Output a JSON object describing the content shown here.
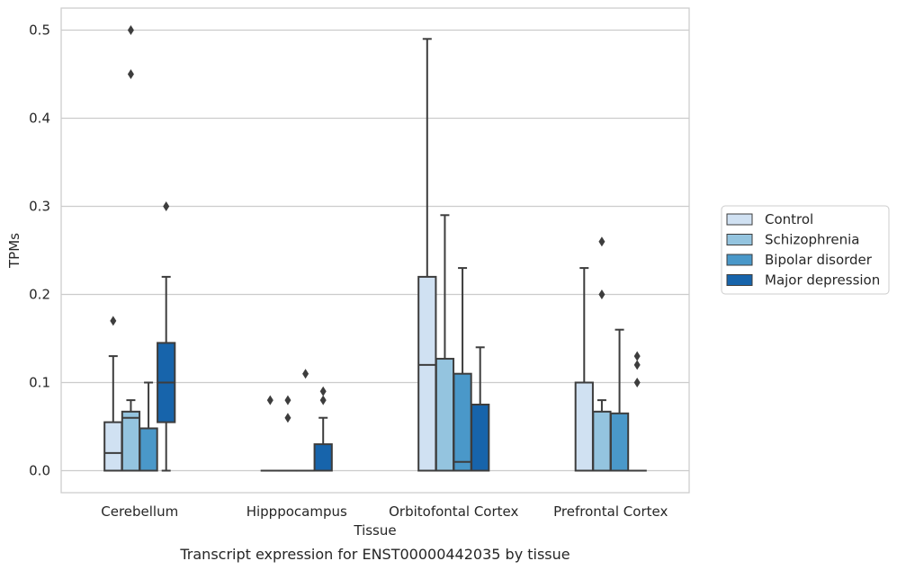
{
  "chart_data": {
    "type": "box",
    "title": "",
    "caption": "Transcript expression for ENST00000442035 by tissue",
    "xlabel": "Tissue",
    "ylabel": "TPMs",
    "ylim": [
      -0.025,
      0.525
    ],
    "yticks": [
      0.0,
      0.1,
      0.2,
      0.3,
      0.4,
      0.5
    ],
    "ytick_labels": [
      "0.0",
      "0.1",
      "0.2",
      "0.3",
      "0.4",
      "0.5"
    ],
    "grid": "horizontal",
    "legend_position": "right",
    "categories": [
      "Cerebellum",
      "Hipppocampus",
      "Orbitofontal Cortex",
      "Prefrontal Cortex"
    ],
    "series": [
      {
        "name": "Control",
        "color": "#d0e1f2",
        "boxes": [
          {
            "q1": 0.0,
            "median": 0.02,
            "q3": 0.055,
            "whisker_low": 0.0,
            "whisker_high": 0.13,
            "outliers": [
              0.17
            ]
          },
          {
            "q1": 0.0,
            "median": 0.0,
            "q3": 0.0,
            "whisker_low": 0.0,
            "whisker_high": 0.0,
            "outliers": [
              0.08
            ]
          },
          {
            "q1": 0.0,
            "median": 0.12,
            "q3": 0.22,
            "whisker_low": 0.0,
            "whisker_high": 0.49,
            "outliers": []
          },
          {
            "q1": 0.0,
            "median": 0.0,
            "q3": 0.1,
            "whisker_low": 0.0,
            "whisker_high": 0.23,
            "outliers": []
          }
        ]
      },
      {
        "name": "Schizophrenia",
        "color": "#94c4df",
        "boxes": [
          {
            "q1": 0.0,
            "median": 0.06,
            "q3": 0.067,
            "whisker_low": 0.0,
            "whisker_high": 0.08,
            "outliers": [
              0.45,
              0.5
            ]
          },
          {
            "q1": 0.0,
            "median": 0.0,
            "q3": 0.0,
            "whisker_low": 0.0,
            "whisker_high": 0.0,
            "outliers": [
              0.06,
              0.08
            ]
          },
          {
            "q1": 0.0,
            "median": 0.0,
            "q3": 0.127,
            "whisker_low": 0.0,
            "whisker_high": 0.29,
            "outliers": []
          },
          {
            "q1": 0.0,
            "median": 0.0,
            "q3": 0.067,
            "whisker_low": 0.0,
            "whisker_high": 0.08,
            "outliers": [
              0.2,
              0.26
            ]
          }
        ]
      },
      {
        "name": "Bipolar disorder",
        "color": "#4a98c9",
        "boxes": [
          {
            "q1": 0.0,
            "median": 0.0,
            "q3": 0.048,
            "whisker_low": 0.0,
            "whisker_high": 0.1,
            "outliers": []
          },
          {
            "q1": 0.0,
            "median": 0.0,
            "q3": 0.0,
            "whisker_low": 0.0,
            "whisker_high": 0.0,
            "outliers": [
              0.11
            ]
          },
          {
            "q1": 0.0,
            "median": 0.01,
            "q3": 0.11,
            "whisker_low": 0.0,
            "whisker_high": 0.23,
            "outliers": []
          },
          {
            "q1": 0.0,
            "median": 0.0,
            "q3": 0.065,
            "whisker_low": 0.0,
            "whisker_high": 0.16,
            "outliers": []
          }
        ]
      },
      {
        "name": "Major depression",
        "color": "#1764ab",
        "boxes": [
          {
            "q1": 0.055,
            "median": 0.1,
            "q3": 0.145,
            "whisker_low": 0.0,
            "whisker_high": 0.22,
            "outliers": [
              0.3
            ]
          },
          {
            "q1": 0.0,
            "median": 0.0,
            "q3": 0.03,
            "whisker_low": 0.0,
            "whisker_high": 0.06,
            "outliers": [
              0.08,
              0.09
            ]
          },
          {
            "q1": 0.0,
            "median": 0.0,
            "q3": 0.075,
            "whisker_low": 0.0,
            "whisker_high": 0.14,
            "outliers": []
          },
          {
            "q1": 0.0,
            "median": 0.0,
            "q3": 0.0,
            "whisker_low": 0.0,
            "whisker_high": 0.0,
            "outliers": [
              0.1,
              0.12,
              0.13
            ]
          }
        ]
      }
    ]
  }
}
